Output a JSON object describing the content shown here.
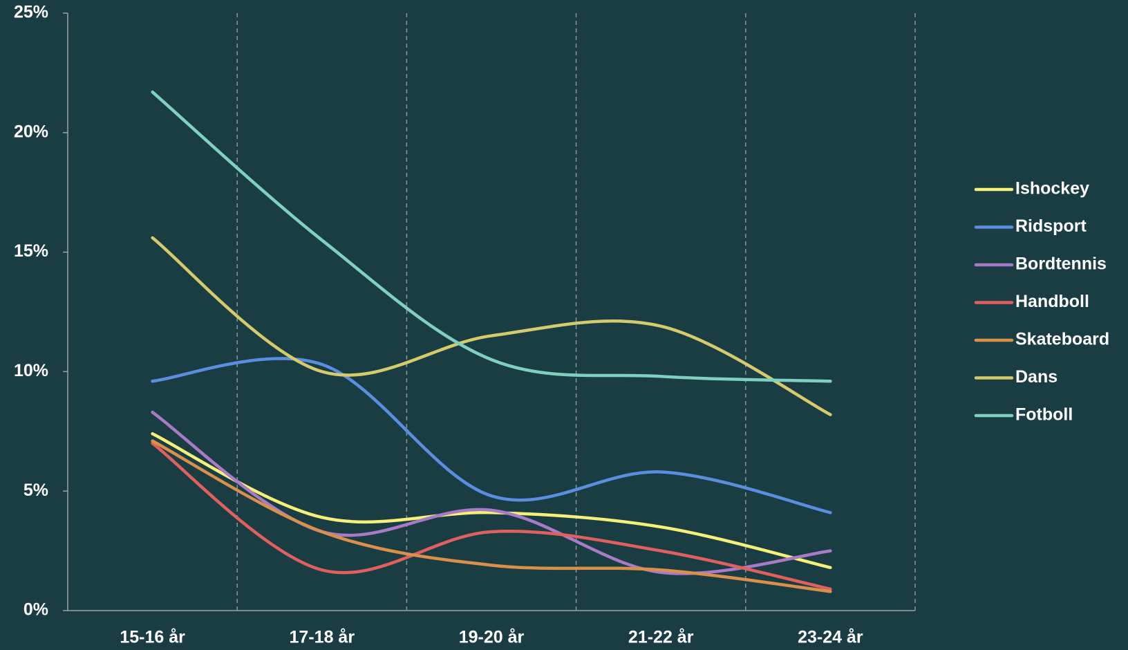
{
  "chart_data": {
    "type": "line",
    "smooth": true,
    "legend": "right",
    "grid": false,
    "categories": [
      "15-16 år",
      "17-18 år",
      "19-20 år",
      "21-22 år",
      "23-24 år"
    ],
    "ylim": [
      0,
      25
    ],
    "yticks": [
      {
        "value": 0,
        "label": "0%"
      },
      {
        "value": 5,
        "label": "5%"
      },
      {
        "value": 10,
        "label": "10%"
      },
      {
        "value": 15,
        "label": "15%"
      },
      {
        "value": 20,
        "label": "20%"
      },
      {
        "value": 25,
        "label": "25%"
      }
    ],
    "series": [
      {
        "name": "Ishockey",
        "color": "#f5f07a",
        "values": [
          7.4,
          3.9,
          4.1,
          3.5,
          1.8
        ]
      },
      {
        "name": "Ridsport",
        "color": "#5b8ee0",
        "values": [
          9.6,
          10.3,
          4.8,
          5.8,
          4.1
        ]
      },
      {
        "name": "Bordtennis",
        "color": "#a97bc6",
        "values": [
          8.3,
          3.3,
          4.2,
          1.6,
          2.5
        ]
      },
      {
        "name": "Handboll",
        "color": "#e0605f",
        "values": [
          7.0,
          1.7,
          3.3,
          2.5,
          0.9
        ]
      },
      {
        "name": "Skateboard",
        "color": "#d9904a",
        "values": [
          7.1,
          3.3,
          1.9,
          1.7,
          0.8
        ]
      },
      {
        "name": "Dans",
        "color": "#d6cb6c",
        "values": [
          15.6,
          10.0,
          11.5,
          11.9,
          8.2
        ]
      },
      {
        "name": "Fotboll",
        "color": "#7fd0c0",
        "values": [
          21.7,
          15.5,
          10.5,
          9.8,
          9.6
        ]
      }
    ]
  }
}
